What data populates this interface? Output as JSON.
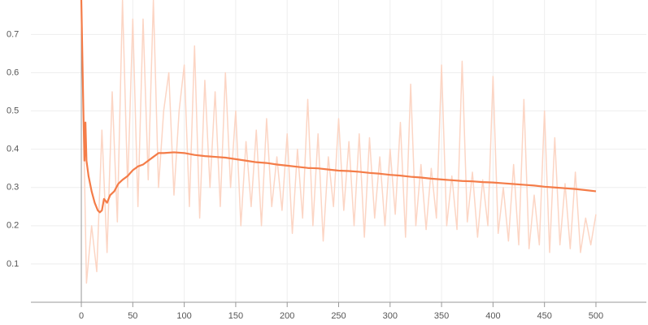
{
  "chart_data": {
    "type": "line",
    "xlim": [
      -49,
      549
    ],
    "xticks": [
      0,
      50,
      100,
      150,
      200,
      250,
      300,
      350,
      400,
      450,
      500
    ],
    "ylim": [
      0,
      0.79
    ],
    "yticks": [
      0.1,
      0.2,
      0.3,
      0.4,
      0.5,
      0.6,
      0.7
    ],
    "grid": true,
    "series": [
      {
        "color": "#fcd5c4",
        "x": [
          0,
          5,
          10,
          15,
          20,
          25,
          30,
          35,
          40,
          45,
          50,
          55,
          60,
          65,
          70,
          75,
          80,
          85,
          90,
          95,
          100,
          105,
          110,
          115,
          120,
          125,
          130,
          135,
          140,
          145,
          150,
          155,
          160,
          165,
          170,
          175,
          180,
          185,
          190,
          195,
          200,
          205,
          210,
          215,
          220,
          225,
          230,
          235,
          240,
          245,
          250,
          255,
          260,
          265,
          270,
          275,
          280,
          285,
          290,
          295,
          300,
          305,
          310,
          315,
          320,
          325,
          330,
          335,
          340,
          345,
          350,
          355,
          360,
          365,
          370,
          375,
          380,
          385,
          390,
          395,
          400,
          405,
          410,
          415,
          420,
          425,
          430,
          435,
          440,
          445,
          450,
          455,
          460,
          465,
          470,
          475,
          480,
          485,
          490,
          495,
          500
        ],
        "values": [
          0.79,
          0.05,
          0.2,
          0.08,
          0.45,
          0.13,
          0.55,
          0.21,
          0.79,
          0.3,
          0.74,
          0.25,
          0.74,
          0.32,
          0.79,
          0.3,
          0.5,
          0.6,
          0.28,
          0.5,
          0.62,
          0.25,
          0.67,
          0.22,
          0.58,
          0.3,
          0.55,
          0.25,
          0.6,
          0.3,
          0.5,
          0.2,
          0.42,
          0.25,
          0.45,
          0.2,
          0.48,
          0.25,
          0.38,
          0.24,
          0.44,
          0.18,
          0.4,
          0.22,
          0.53,
          0.2,
          0.44,
          0.16,
          0.38,
          0.25,
          0.48,
          0.24,
          0.42,
          0.2,
          0.44,
          0.17,
          0.43,
          0.22,
          0.38,
          0.2,
          0.4,
          0.23,
          0.47,
          0.17,
          0.57,
          0.2,
          0.36,
          0.19,
          0.35,
          0.22,
          0.62,
          0.2,
          0.33,
          0.19,
          0.63,
          0.21,
          0.34,
          0.17,
          0.32,
          0.2,
          0.59,
          0.18,
          0.3,
          0.16,
          0.36,
          0.15,
          0.53,
          0.14,
          0.28,
          0.15,
          0.5,
          0.13,
          0.43,
          0.15,
          0.31,
          0.14,
          0.34,
          0.13,
          0.22,
          0.15,
          0.23
        ]
      },
      {
        "color": "#f47c48",
        "x": [
          0,
          2,
          3,
          4,
          5,
          7,
          10,
          13,
          16,
          18,
          20,
          22,
          25,
          28,
          32,
          36,
          40,
          45,
          50,
          55,
          60,
          65,
          70,
          75,
          80,
          90,
          100,
          110,
          120,
          130,
          140,
          150,
          160,
          170,
          180,
          190,
          200,
          210,
          220,
          230,
          240,
          250,
          260,
          270,
          280,
          290,
          300,
          310,
          320,
          330,
          340,
          350,
          360,
          370,
          380,
          390,
          400,
          410,
          420,
          430,
          440,
          450,
          460,
          470,
          480,
          490,
          500
        ],
        "values": [
          0.79,
          0.5,
          0.37,
          0.47,
          0.37,
          0.33,
          0.29,
          0.26,
          0.24,
          0.235,
          0.24,
          0.27,
          0.26,
          0.28,
          0.29,
          0.31,
          0.32,
          0.33,
          0.345,
          0.355,
          0.36,
          0.37,
          0.38,
          0.39,
          0.39,
          0.392,
          0.39,
          0.385,
          0.382,
          0.38,
          0.378,
          0.374,
          0.37,
          0.366,
          0.364,
          0.36,
          0.357,
          0.354,
          0.351,
          0.35,
          0.347,
          0.344,
          0.343,
          0.341,
          0.338,
          0.336,
          0.333,
          0.331,
          0.328,
          0.326,
          0.323,
          0.321,
          0.319,
          0.317,
          0.316,
          0.314,
          0.313,
          0.311,
          0.309,
          0.307,
          0.305,
          0.302,
          0.3,
          0.298,
          0.296,
          0.293,
          0.29
        ]
      }
    ]
  }
}
